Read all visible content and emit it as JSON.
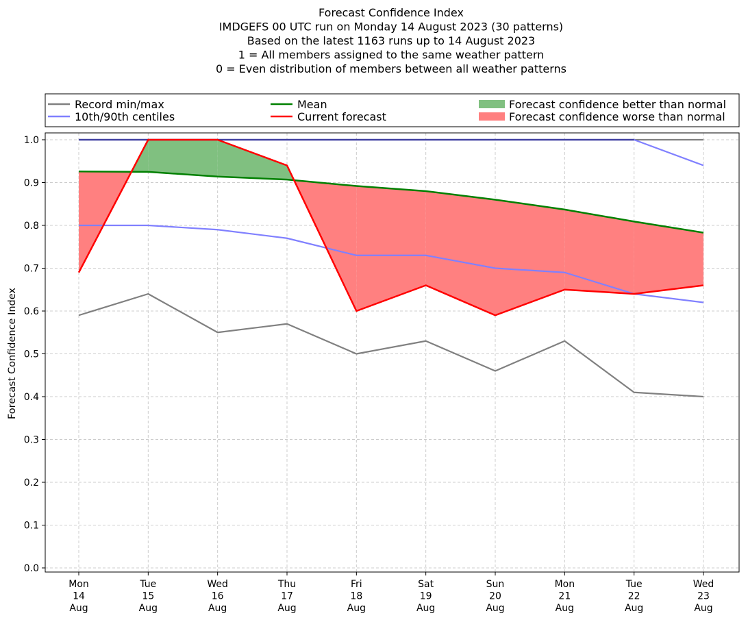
{
  "chart_data": {
    "type": "line",
    "title_lines": [
      "Forecast Confidence Index",
      "IMDGEFS 00 UTC run on Monday 14 August 2023 (30 patterns)",
      "Based on the latest 1163 runs up to 14 August 2023",
      "1 = All members assigned to the same weather pattern",
      "0 = Even distribution of members between all weather patterns"
    ],
    "ylabel": "Forecast Confidence Index",
    "xlabel": "",
    "ylim": [
      0.0,
      1.0
    ],
    "yticks": [
      "0.0",
      "0.1",
      "0.2",
      "0.3",
      "0.4",
      "0.5",
      "0.6",
      "0.7",
      "0.8",
      "0.9",
      "1.0"
    ],
    "grid": true,
    "legend_position": "top, above plot",
    "categories": [
      [
        "Mon",
        "14",
        "Aug"
      ],
      [
        "Tue",
        "15",
        "Aug"
      ],
      [
        "Wed",
        "16",
        "Aug"
      ],
      [
        "Thu",
        "17",
        "Aug"
      ],
      [
        "Fri",
        "18",
        "Aug"
      ],
      [
        "Sat",
        "19",
        "Aug"
      ],
      [
        "Sun",
        "20",
        "Aug"
      ],
      [
        "Mon",
        "21",
        "Aug"
      ],
      [
        "Tue",
        "22",
        "Aug"
      ],
      [
        "Wed",
        "23",
        "Aug"
      ]
    ],
    "series": {
      "record_min": [
        0.59,
        0.64,
        0.55,
        0.57,
        0.5,
        0.53,
        0.46,
        0.53,
        0.41,
        0.4
      ],
      "record_max": [
        1.0,
        1.0,
        1.0,
        1.0,
        1.0,
        1.0,
        1.0,
        1.0,
        1.0,
        1.0
      ],
      "p10": [
        0.8,
        0.8,
        0.79,
        0.77,
        0.73,
        0.73,
        0.7,
        0.69,
        0.64,
        0.62
      ],
      "p90": [
        1.0,
        1.0,
        1.0,
        1.0,
        1.0,
        1.0,
        1.0,
        1.0,
        1.0,
        0.94
      ],
      "mean": [
        0.926,
        0.925,
        0.914,
        0.907,
        0.892,
        0.88,
        0.86,
        0.837,
        0.809,
        0.783
      ],
      "current": [
        0.69,
        1.0,
        1.0,
        0.94,
        0.6,
        0.66,
        0.59,
        0.65,
        0.64,
        0.66
      ]
    },
    "legend": [
      {
        "label": "Record min/max",
        "kind": "line",
        "color": "#808080"
      },
      {
        "label": "Mean",
        "kind": "line",
        "color": "#008000"
      },
      {
        "label": "Forecast confidence better than normal",
        "kind": "patch",
        "color": "#80c080"
      },
      {
        "label": "10th/90th centiles",
        "kind": "line",
        "color": "#8080ff"
      },
      {
        "label": "Current forecast",
        "kind": "line",
        "color": "#ff0000"
      },
      {
        "label": "Forecast confidence worse than normal",
        "kind": "patch",
        "color": "#ff8080"
      }
    ],
    "colors": {
      "record": "#808080",
      "centiles": "#8080ff",
      "mean": "#008000",
      "current": "#ff0000",
      "better_fill": "#80c080",
      "worse_fill": "#ff8080",
      "grid": "#cccccc",
      "axes": "#000000"
    }
  }
}
